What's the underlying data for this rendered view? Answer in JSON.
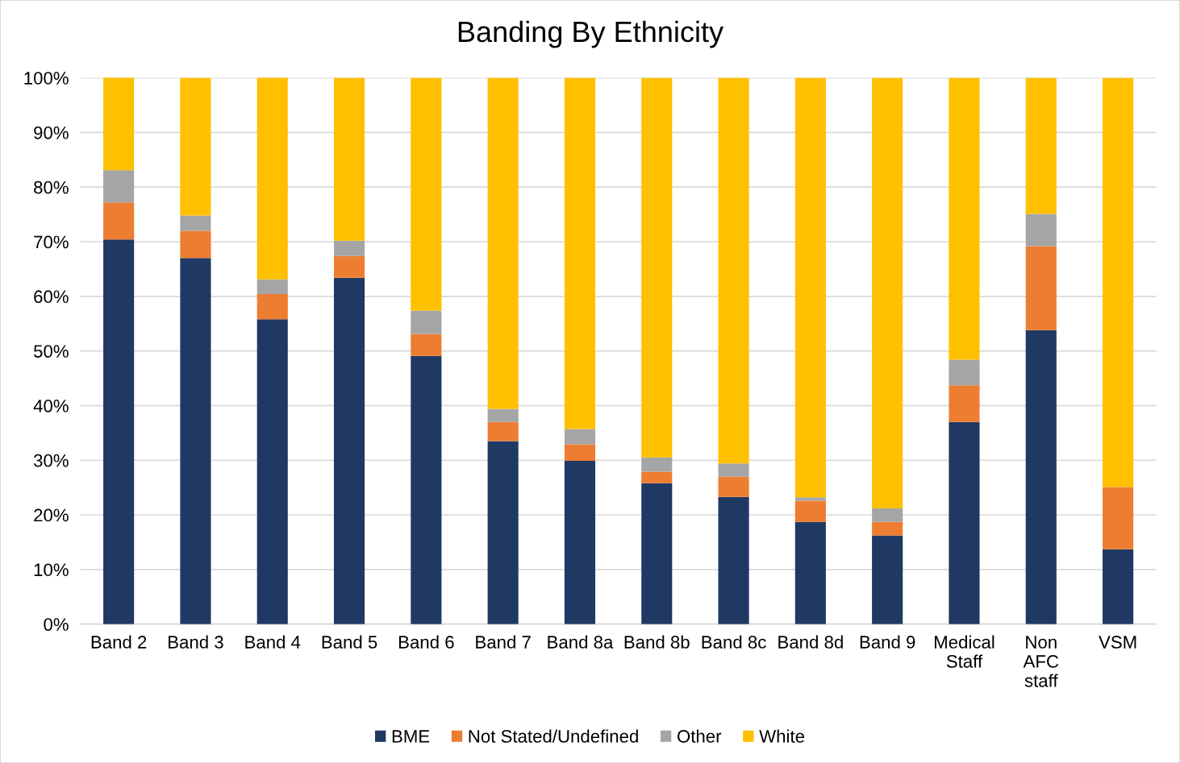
{
  "chart_data": {
    "type": "bar",
    "title": "Banding By Ethnicity",
    "stacked": true,
    "categories": [
      "Band 2",
      "Band 3",
      "Band 4",
      "Band 5",
      "Band 6",
      "Band 7",
      "Band 8a",
      "Band 8b",
      "Band 8c",
      "Band 8d",
      "Band 9",
      "Medical\nStaff",
      "Non\nAFC\nstaff",
      "VSM"
    ],
    "series": [
      {
        "name": "BME",
        "color": "#203864",
        "values": [
          70.4,
          67.0,
          55.8,
          63.4,
          49.1,
          33.5,
          29.9,
          25.8,
          23.3,
          18.7,
          16.2,
          37.0,
          53.8,
          13.7
        ]
      },
      {
        "name": "Not Stated/Undefined",
        "color": "#ed7d31",
        "values": [
          6.8,
          5.0,
          4.6,
          4.0,
          4.0,
          3.5,
          3.0,
          2.1,
          3.7,
          3.9,
          2.5,
          6.7,
          15.4,
          11.4
        ]
      },
      {
        "name": "Other",
        "color": "#a5a5a5",
        "values": [
          5.9,
          2.8,
          2.7,
          2.8,
          4.3,
          2.4,
          2.8,
          2.6,
          2.4,
          0.6,
          2.5,
          4.7,
          5.9,
          0
        ]
      },
      {
        "name": "White",
        "color": "#ffc000",
        "values": [
          17.0,
          25.2,
          37.0,
          29.8,
          42.6,
          60.6,
          64.3,
          69.5,
          70.6,
          76.8,
          78.8,
          51.6,
          24.9,
          74.9
        ]
      }
    ],
    "ylim": [
      0,
      100
    ],
    "yticks": [
      {
        "value": 0,
        "label": "0%"
      },
      {
        "value": 10,
        "label": "10%"
      },
      {
        "value": 20,
        "label": "20%"
      },
      {
        "value": 30,
        "label": "30%"
      },
      {
        "value": 40,
        "label": "40%"
      },
      {
        "value": 50,
        "label": "50%"
      },
      {
        "value": 60,
        "label": "60%"
      },
      {
        "value": 70,
        "label": "70%"
      },
      {
        "value": 80,
        "label": "80%"
      },
      {
        "value": 90,
        "label": "90%"
      },
      {
        "value": 100,
        "label": "100%"
      }
    ],
    "grid": "y",
    "legend": "bottom"
  }
}
